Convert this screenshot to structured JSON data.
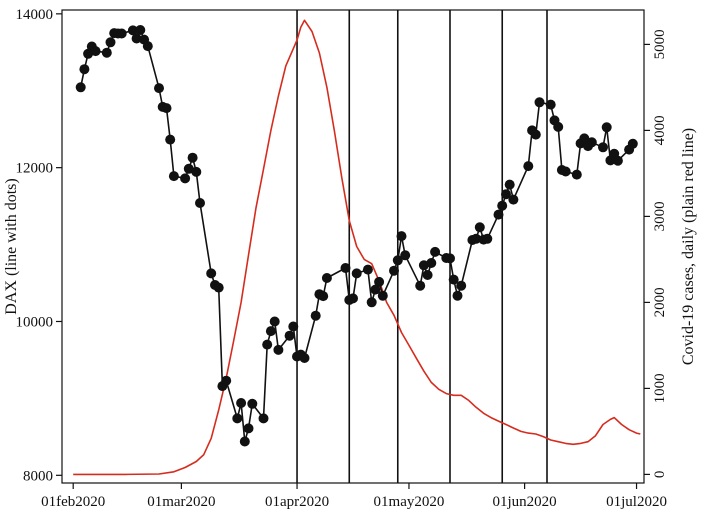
{
  "chart_data": {
    "type": "line",
    "title": "",
    "x_axis": {
      "type": "date",
      "range": [
        "2020-01-29",
        "2020-07-03"
      ],
      "tick_labels": [
        {
          "date": "2020-02-01",
          "label": "01feb2020"
        },
        {
          "date": "2020-03-01",
          "label": "01mar2020"
        },
        {
          "date": "2020-04-01",
          "label": "01apr2020"
        },
        {
          "date": "2020-05-01",
          "label": "01may2020"
        },
        {
          "date": "2020-06-01",
          "label": "01jun2020"
        },
        {
          "date": "2020-07-01",
          "label": "01jul2020"
        }
      ]
    },
    "y_left": {
      "label": "DAX (line with dots)",
      "range": [
        7900,
        14050
      ],
      "ticks": [
        8000,
        10000,
        12000,
        14000
      ]
    },
    "y_right": {
      "label": "Covid-19 cases, daily (plain red line)",
      "range": [
        -100,
        5400
      ],
      "ticks": [
        0,
        1000,
        2000,
        3000,
        4000,
        5000
      ]
    },
    "vertical_lines": [
      "2020-04-01",
      "2020-04-15",
      "2020-04-28",
      "2020-05-12",
      "2020-05-26",
      "2020-06-07"
    ],
    "grid": false,
    "series": [
      {
        "name": "DAX",
        "axis": "left",
        "color": "#111111",
        "marker": "dot",
        "points": [
          [
            "2020-02-03",
            13045
          ],
          [
            "2020-02-04",
            13280
          ],
          [
            "2020-02-05",
            13480
          ],
          [
            "2020-02-06",
            13575
          ],
          [
            "2020-02-07",
            13515
          ],
          [
            "2020-02-10",
            13495
          ],
          [
            "2020-02-11",
            13630
          ],
          [
            "2020-02-12",
            13750
          ],
          [
            "2020-02-13",
            13745
          ],
          [
            "2020-02-14",
            13745
          ],
          [
            "2020-02-17",
            13785
          ],
          [
            "2020-02-18",
            13680
          ],
          [
            "2020-02-19",
            13790
          ],
          [
            "2020-02-20",
            13665
          ],
          [
            "2020-02-21",
            13580
          ],
          [
            "2020-02-24",
            13035
          ],
          [
            "2020-02-25",
            12790
          ],
          [
            "2020-02-26",
            12775
          ],
          [
            "2020-02-27",
            12365
          ],
          [
            "2020-02-28",
            11890
          ],
          [
            "2020-03-02",
            11860
          ],
          [
            "2020-03-03",
            11985
          ],
          [
            "2020-03-04",
            12130
          ],
          [
            "2020-03-05",
            11945
          ],
          [
            "2020-03-06",
            11540
          ],
          [
            "2020-03-09",
            10625
          ],
          [
            "2020-03-10",
            10475
          ],
          [
            "2020-03-11",
            10440
          ],
          [
            "2020-03-12",
            9160
          ],
          [
            "2020-03-13",
            9230
          ],
          [
            "2020-03-16",
            8740
          ],
          [
            "2020-03-17",
            8940
          ],
          [
            "2020-03-18",
            8440
          ],
          [
            "2020-03-19",
            8610
          ],
          [
            "2020-03-20",
            8930
          ],
          [
            "2020-03-23",
            8740
          ],
          [
            "2020-03-24",
            9700
          ],
          [
            "2020-03-25",
            9875
          ],
          [
            "2020-03-26",
            10000
          ],
          [
            "2020-03-27",
            9630
          ],
          [
            "2020-03-30",
            9815
          ],
          [
            "2020-03-31",
            9935
          ],
          [
            "2020-04-01",
            9545
          ],
          [
            "2020-04-02",
            9570
          ],
          [
            "2020-04-03",
            9525
          ],
          [
            "2020-04-06",
            10075
          ],
          [
            "2020-04-07",
            10355
          ],
          [
            "2020-04-08",
            10330
          ],
          [
            "2020-04-09",
            10565
          ],
          [
            "2020-04-14",
            10695
          ],
          [
            "2020-04-15",
            10280
          ],
          [
            "2020-04-16",
            10300
          ],
          [
            "2020-04-17",
            10625
          ],
          [
            "2020-04-20",
            10675
          ],
          [
            "2020-04-21",
            10250
          ],
          [
            "2020-04-22",
            10415
          ],
          [
            "2020-04-23",
            10515
          ],
          [
            "2020-04-24",
            10335
          ],
          [
            "2020-04-27",
            10660
          ],
          [
            "2020-04-28",
            10795
          ],
          [
            "2020-04-29",
            11110
          ],
          [
            "2020-04-30",
            10860
          ],
          [
            "2020-05-04",
            10465
          ],
          [
            "2020-05-05",
            10730
          ],
          [
            "2020-05-06",
            10605
          ],
          [
            "2020-05-07",
            10760
          ],
          [
            "2020-05-08",
            10905
          ],
          [
            "2020-05-11",
            10825
          ],
          [
            "2020-05-12",
            10820
          ],
          [
            "2020-05-13",
            10545
          ],
          [
            "2020-05-14",
            10335
          ],
          [
            "2020-05-15",
            10465
          ],
          [
            "2020-05-18",
            11060
          ],
          [
            "2020-05-19",
            11075
          ],
          [
            "2020-05-20",
            11225
          ],
          [
            "2020-05-21",
            11065
          ],
          [
            "2020-05-22",
            11075
          ],
          [
            "2020-05-25",
            11390
          ],
          [
            "2020-05-26",
            11505
          ],
          [
            "2020-05-27",
            11655
          ],
          [
            "2020-05-28",
            11780
          ],
          [
            "2020-05-29",
            11585
          ],
          [
            "2020-06-02",
            12020
          ],
          [
            "2020-06-03",
            12485
          ],
          [
            "2020-06-04",
            12430
          ],
          [
            "2020-06-05",
            12850
          ],
          [
            "2020-06-08",
            12820
          ],
          [
            "2020-06-09",
            12615
          ],
          [
            "2020-06-10",
            12530
          ],
          [
            "2020-06-11",
            11970
          ],
          [
            "2020-06-12",
            11950
          ],
          [
            "2020-06-15",
            11910
          ],
          [
            "2020-06-16",
            12315
          ],
          [
            "2020-06-17",
            12380
          ],
          [
            "2020-06-18",
            12280
          ],
          [
            "2020-06-19",
            12330
          ],
          [
            "2020-06-22",
            12265
          ],
          [
            "2020-06-23",
            12525
          ],
          [
            "2020-06-24",
            12095
          ],
          [
            "2020-06-25",
            12180
          ],
          [
            "2020-06-26",
            12090
          ],
          [
            "2020-06-29",
            12235
          ],
          [
            "2020-06-30",
            12310
          ]
        ]
      },
      {
        "name": "Covid-19 cases, daily",
        "axis": "right",
        "color": "#d62c1e",
        "marker": "none",
        "points": [
          [
            "2020-02-01",
            0
          ],
          [
            "2020-02-15",
            0
          ],
          [
            "2020-02-24",
            5
          ],
          [
            "2020-02-28",
            30
          ],
          [
            "2020-03-02",
            80
          ],
          [
            "2020-03-05",
            150
          ],
          [
            "2020-03-07",
            230
          ],
          [
            "2020-03-09",
            420
          ],
          [
            "2020-03-11",
            750
          ],
          [
            "2020-03-13",
            1120
          ],
          [
            "2020-03-15",
            1550
          ],
          [
            "2020-03-17",
            2000
          ],
          [
            "2020-03-19",
            2550
          ],
          [
            "2020-03-21",
            3100
          ],
          [
            "2020-03-23",
            3550
          ],
          [
            "2020-03-25",
            4000
          ],
          [
            "2020-03-27",
            4400
          ],
          [
            "2020-03-29",
            4750
          ],
          [
            "2020-03-31",
            4950
          ],
          [
            "2020-04-01",
            5050
          ],
          [
            "2020-04-02",
            5200
          ],
          [
            "2020-04-03",
            5280
          ],
          [
            "2020-04-05",
            5150
          ],
          [
            "2020-04-07",
            4900
          ],
          [
            "2020-04-09",
            4500
          ],
          [
            "2020-04-11",
            4000
          ],
          [
            "2020-04-13",
            3450
          ],
          [
            "2020-04-15",
            2950
          ],
          [
            "2020-04-17",
            2650
          ],
          [
            "2020-04-19",
            2500
          ],
          [
            "2020-04-21",
            2450
          ],
          [
            "2020-04-23",
            2250
          ],
          [
            "2020-04-25",
            2000
          ],
          [
            "2020-04-27",
            1850
          ],
          [
            "2020-04-29",
            1650
          ],
          [
            "2020-05-01",
            1500
          ],
          [
            "2020-05-03",
            1350
          ],
          [
            "2020-05-05",
            1200
          ],
          [
            "2020-05-07",
            1070
          ],
          [
            "2020-05-09",
            990
          ],
          [
            "2020-05-11",
            940
          ],
          [
            "2020-05-13",
            920
          ],
          [
            "2020-05-15",
            920
          ],
          [
            "2020-05-17",
            860
          ],
          [
            "2020-05-19",
            780
          ],
          [
            "2020-05-21",
            710
          ],
          [
            "2020-05-23",
            660
          ],
          [
            "2020-05-25",
            620
          ],
          [
            "2020-05-27",
            580
          ],
          [
            "2020-05-29",
            540
          ],
          [
            "2020-05-31",
            500
          ],
          [
            "2020-06-02",
            480
          ],
          [
            "2020-06-04",
            470
          ],
          [
            "2020-06-06",
            440
          ],
          [
            "2020-06-08",
            400
          ],
          [
            "2020-06-10",
            380
          ],
          [
            "2020-06-12",
            360
          ],
          [
            "2020-06-14",
            350
          ],
          [
            "2020-06-16",
            360
          ],
          [
            "2020-06-18",
            380
          ],
          [
            "2020-06-20",
            450
          ],
          [
            "2020-06-22",
            580
          ],
          [
            "2020-06-24",
            640
          ],
          [
            "2020-06-25",
            660
          ],
          [
            "2020-06-27",
            580
          ],
          [
            "2020-06-29",
            520
          ],
          [
            "2020-07-01",
            480
          ],
          [
            "2020-07-02",
            470
          ]
        ]
      }
    ]
  }
}
